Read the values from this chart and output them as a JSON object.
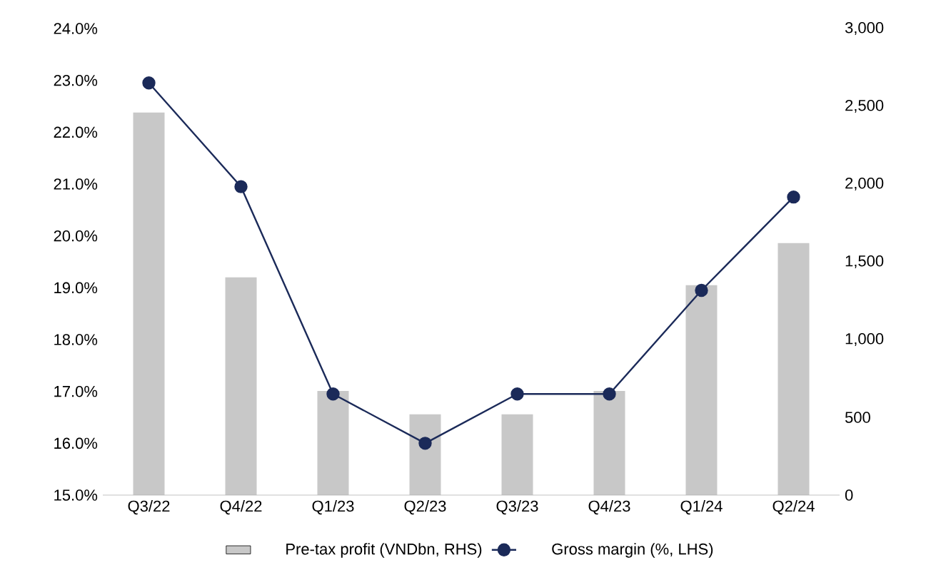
{
  "chart_data": {
    "type": "bar",
    "categories": [
      "Q3/22",
      "Q4/22",
      "Q1/23",
      "Q2/23",
      "Q3/23",
      "Q4/23",
      "Q1/24",
      "Q2/24"
    ],
    "series": [
      {
        "name": "Pre-tax profit  (VNDbn, RHS)",
        "axis": "y2",
        "color": "#c8c8c8",
        "values": [
          2460,
          1400,
          670,
          520,
          520,
          670,
          1350,
          1620
        ]
      },
      {
        "name": "Gross margin (%, LHS)",
        "type": "line",
        "axis": "y",
        "color": "#1b2a59",
        "marker": "circle",
        "values": [
          22.95,
          20.95,
          16.95,
          16.0,
          16.95,
          16.95,
          18.95,
          20.75
        ]
      }
    ],
    "ylim": [
      15,
      24
    ],
    "yticks": [
      {
        "value": 15,
        "label": "15.0%"
      },
      {
        "value": 16,
        "label": "16.0%"
      },
      {
        "value": 17,
        "label": "17.0%"
      },
      {
        "value": 18,
        "label": "18.0%"
      },
      {
        "value": 19,
        "label": "19.0%"
      },
      {
        "value": 20,
        "label": "20.0%"
      },
      {
        "value": 21,
        "label": "21.0%"
      },
      {
        "value": 22,
        "label": "22.0%"
      },
      {
        "value": 23,
        "label": "23.0%"
      },
      {
        "value": 24,
        "label": "24.0%"
      }
    ],
    "y2lim": [
      0,
      3000
    ],
    "y2ticks": [
      0,
      500,
      {
        "value": 1000,
        "label": "1,000"
      },
      {
        "value": 1500,
        "label": "1,500"
      },
      {
        "value": 2000,
        "label": "2,000"
      },
      {
        "value": 2500,
        "label": "2,500"
      },
      {
        "value": 3000,
        "label": "3,000"
      }
    ],
    "grid": false,
    "legend": "bottom"
  }
}
